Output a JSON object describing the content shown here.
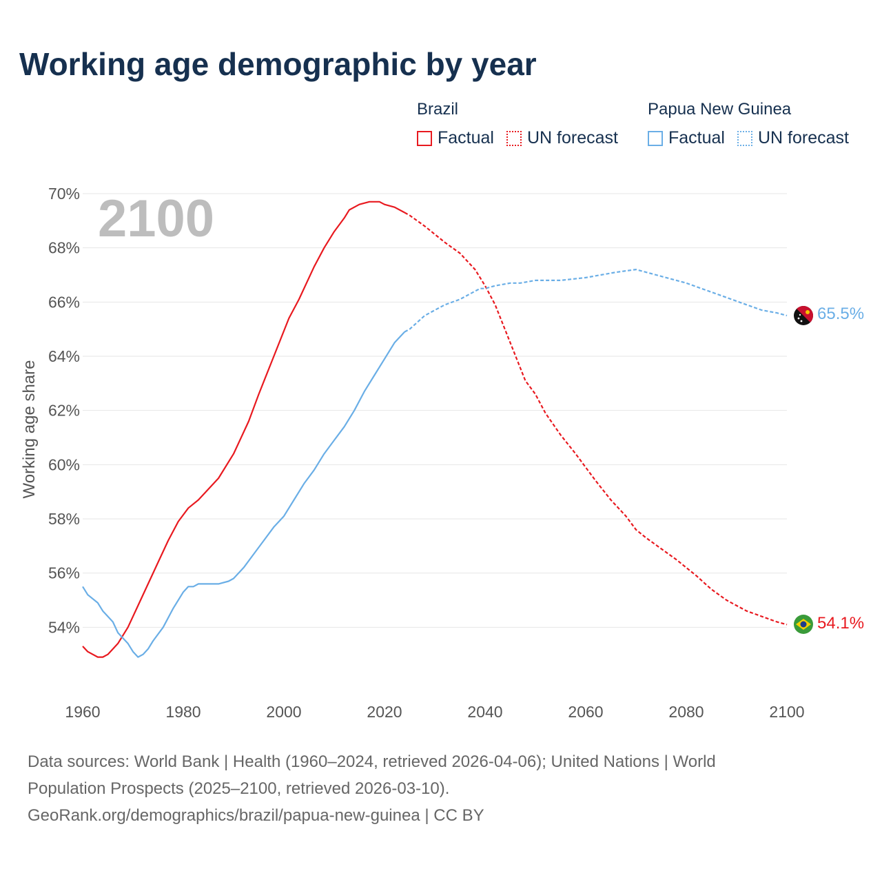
{
  "title": "Working age demographic by year",
  "legend": {
    "groups": [
      {
        "country": "Brazil",
        "factual_label": "Factual",
        "forecast_label": "UN forecast",
        "color": "#e8191f"
      },
      {
        "country": "Papua New Guinea",
        "factual_label": "Factual",
        "forecast_label": "UN forecast",
        "color": "#6aaee6"
      }
    ]
  },
  "year_watermark": "2100",
  "end_labels": {
    "png": "65.5%",
    "brazil": "54.1%"
  },
  "source": {
    "line1": "Data sources: World Bank | Health (1960–2024, retrieved 2026-04-06); United Nations | World",
    "line2": "Population Prospects (2025–2100, retrieved 2026-03-10).",
    "line3": "GeoRank.org/demographics/brazil/papua-new-guinea | CC BY"
  },
  "chart_data": {
    "type": "line",
    "title": "Working age demographic by year",
    "xlabel": "",
    "ylabel": "Working age share",
    "xlim": [
      1960,
      2100
    ],
    "ylim": [
      52,
      70
    ],
    "x_ticks": [
      "1960",
      "1980",
      "2000",
      "2020",
      "2040",
      "2060",
      "2080",
      "2100"
    ],
    "y_ticks": [
      "54%",
      "56%",
      "58%",
      "60%",
      "62%",
      "64%",
      "66%",
      "68%",
      "70%"
    ],
    "y_tick_values": [
      54,
      56,
      58,
      60,
      62,
      64,
      66,
      68,
      70
    ],
    "x_tick_values": [
      1960,
      1980,
      2000,
      2020,
      2040,
      2060,
      2080,
      2100
    ],
    "grid": true,
    "factual_end_year": 2024,
    "series": [
      {
        "name": "Brazil",
        "color": "#e8191f",
        "x": [
          1960,
          1961,
          1963,
          1964,
          1965,
          1967,
          1969,
          1971,
          1973,
          1975,
          1977,
          1979,
          1981,
          1983,
          1985,
          1987,
          1990,
          1993,
          1995,
          1998,
          2001,
          2003,
          2006,
          2008,
          2010,
          2012,
          2013,
          2015,
          2017,
          2019,
          2020,
          2022,
          2024,
          2025,
          2028,
          2030,
          2032,
          2035,
          2038,
          2040,
          2042,
          2045,
          2048,
          2050,
          2052,
          2055,
          2058,
          2060,
          2062,
          2065,
          2068,
          2070,
          2072,
          2075,
          2078,
          2080,
          2082,
          2085,
          2088,
          2090,
          2092,
          2095,
          2098,
          2100
        ],
        "y": [
          53.3,
          53.1,
          52.9,
          52.9,
          53.0,
          53.4,
          54.0,
          54.8,
          55.6,
          56.4,
          57.2,
          57.9,
          58.4,
          58.7,
          59.1,
          59.5,
          60.4,
          61.6,
          62.6,
          64.0,
          65.4,
          66.1,
          67.3,
          68.0,
          68.6,
          69.1,
          69.4,
          69.6,
          69.7,
          69.7,
          69.6,
          69.5,
          69.3,
          69.2,
          68.8,
          68.5,
          68.2,
          67.8,
          67.2,
          66.6,
          65.9,
          64.5,
          63.1,
          62.6,
          61.9,
          61.1,
          60.4,
          59.9,
          59.4,
          58.7,
          58.1,
          57.6,
          57.3,
          56.9,
          56.5,
          56.2,
          55.9,
          55.4,
          55.0,
          54.8,
          54.6,
          54.4,
          54.2,
          54.1
        ]
      },
      {
        "name": "Papua New Guinea",
        "color": "#6aaee6",
        "x": [
          1960,
          1961,
          1963,
          1964,
          1966,
          1967,
          1969,
          1970,
          1971,
          1972,
          1973,
          1974,
          1976,
          1978,
          1980,
          1981,
          1982,
          1983,
          1985,
          1987,
          1989,
          1990,
          1992,
          1994,
          1996,
          1998,
          2000,
          2002,
          2004,
          2006,
          2008,
          2010,
          2012,
          2014,
          2016,
          2018,
          2020,
          2022,
          2024,
          2025,
          2028,
          2030,
          2032,
          2035,
          2037,
          2039,
          2040,
          2042,
          2045,
          2047,
          2050,
          2055,
          2060,
          2063,
          2066,
          2070,
          2074,
          2076,
          2080,
          2083,
          2086,
          2089,
          2092,
          2095,
          2098,
          2100
        ],
        "y": [
          55.5,
          55.2,
          54.9,
          54.6,
          54.2,
          53.8,
          53.4,
          53.1,
          52.9,
          53.0,
          53.2,
          53.5,
          54.0,
          54.7,
          55.3,
          55.5,
          55.5,
          55.6,
          55.6,
          55.6,
          55.7,
          55.8,
          56.2,
          56.7,
          57.2,
          57.7,
          58.1,
          58.7,
          59.3,
          59.8,
          60.4,
          60.9,
          61.4,
          62.0,
          62.7,
          63.3,
          63.9,
          64.5,
          64.9,
          65.0,
          65.5,
          65.7,
          65.9,
          66.1,
          66.3,
          66.5,
          66.5,
          66.6,
          66.7,
          66.7,
          66.8,
          66.8,
          66.9,
          67.0,
          67.1,
          67.2,
          67.0,
          66.9,
          66.7,
          66.5,
          66.3,
          66.1,
          65.9,
          65.7,
          65.6,
          65.5
        ]
      }
    ]
  }
}
